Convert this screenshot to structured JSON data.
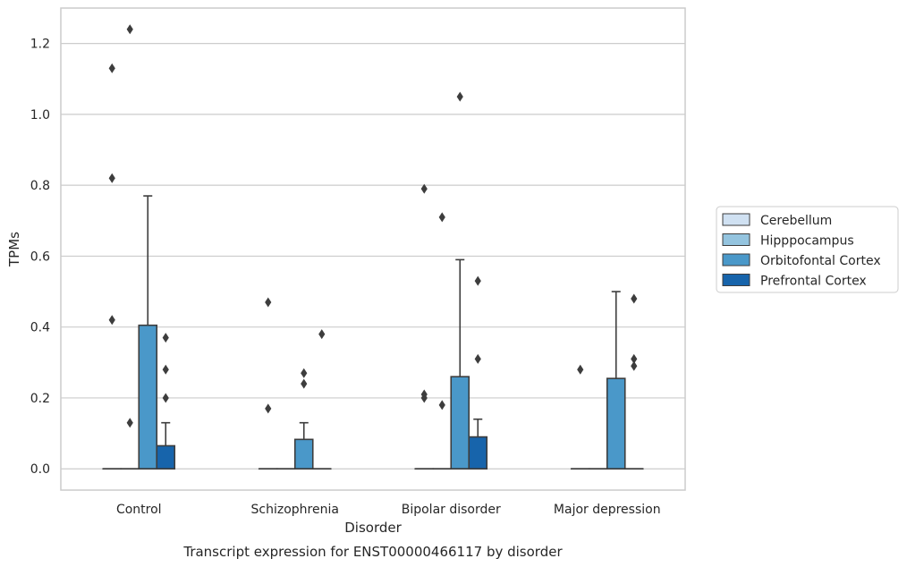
{
  "chart_data": {
    "type": "box",
    "title": "",
    "caption": "Transcript expression for ENST00000466117 by disorder",
    "xlabel": "Disorder",
    "ylabel": "TPMs",
    "ylim": [
      -0.06,
      1.3
    ],
    "yticks": [
      "0.0",
      "0.2",
      "0.4",
      "0.6",
      "0.8",
      "1.0",
      "1.2"
    ],
    "categories": [
      "Control",
      "Schizophrenia",
      "Bipolar disorder",
      "Major depression"
    ],
    "grid": "horizontal",
    "legend_position": "right",
    "series": [
      {
        "name": "Cerebellum",
        "color": "#d0e1f2",
        "boxes": [
          {
            "q1": 0,
            "median": 0,
            "q3": 0,
            "whisker_low": 0,
            "whisker_high": 0,
            "outliers": [
              1.13,
              0.82,
              0.42
            ]
          },
          {
            "q1": 0,
            "median": 0,
            "q3": 0,
            "whisker_low": 0,
            "whisker_high": 0,
            "outliers": [
              0.47,
              0.17
            ]
          },
          {
            "q1": 0,
            "median": 0,
            "q3": 0,
            "whisker_low": 0,
            "whisker_high": 0,
            "outliers": [
              0.79,
              0.21,
              0.2
            ]
          },
          {
            "q1": 0,
            "median": 0,
            "q3": 0,
            "whisker_low": 0,
            "whisker_high": 0,
            "outliers": [
              0.28
            ]
          }
        ]
      },
      {
        "name": "Hipppocampus",
        "color": "#94c4df",
        "boxes": [
          {
            "q1": 0,
            "median": 0,
            "q3": 0,
            "whisker_low": 0,
            "whisker_high": 0,
            "outliers": [
              1.24,
              0.13
            ]
          },
          {
            "q1": 0,
            "median": 0,
            "q3": 0,
            "whisker_low": 0,
            "whisker_high": 0,
            "outliers": []
          },
          {
            "q1": 0,
            "median": 0,
            "q3": 0,
            "whisker_low": 0,
            "whisker_high": 0,
            "outliers": [
              0.71,
              0.18
            ]
          },
          {
            "q1": 0,
            "median": 0,
            "q3": 0,
            "whisker_low": 0,
            "whisker_high": 0,
            "outliers": []
          }
        ]
      },
      {
        "name": "Orbitofontal Cortex",
        "color": "#4a98c9",
        "boxes": [
          {
            "q1": 0,
            "median": 0,
            "q3": 0.405,
            "whisker_low": 0,
            "whisker_high": 0.77,
            "outliers": []
          },
          {
            "q1": 0,
            "median": 0,
            "q3": 0.083,
            "whisker_low": 0,
            "whisker_high": 0.13,
            "outliers": [
              0.27,
              0.24
            ]
          },
          {
            "q1": 0,
            "median": 0,
            "q3": 0.26,
            "whisker_low": 0,
            "whisker_high": 0.59,
            "outliers": [
              1.05
            ]
          },
          {
            "q1": 0,
            "median": 0,
            "q3": 0.255,
            "whisker_low": 0,
            "whisker_high": 0.5,
            "outliers": []
          }
        ]
      },
      {
        "name": "Prefrontal Cortex",
        "color": "#1764ab",
        "boxes": [
          {
            "q1": 0,
            "median": 0,
            "q3": 0.065,
            "whisker_low": 0,
            "whisker_high": 0.13,
            "outliers": [
              0.37,
              0.28,
              0.2
            ]
          },
          {
            "q1": 0,
            "median": 0,
            "q3": 0,
            "whisker_low": 0,
            "whisker_high": 0,
            "outliers": [
              0.38
            ]
          },
          {
            "q1": 0,
            "median": 0,
            "q3": 0.09,
            "whisker_low": 0,
            "whisker_high": 0.14,
            "outliers": [
              0.53,
              0.31
            ]
          },
          {
            "q1": 0,
            "median": 0,
            "q3": 0,
            "whisker_low": 0,
            "whisker_high": 0,
            "outliers": [
              0.48,
              0.31,
              0.29
            ]
          }
        ]
      }
    ]
  }
}
